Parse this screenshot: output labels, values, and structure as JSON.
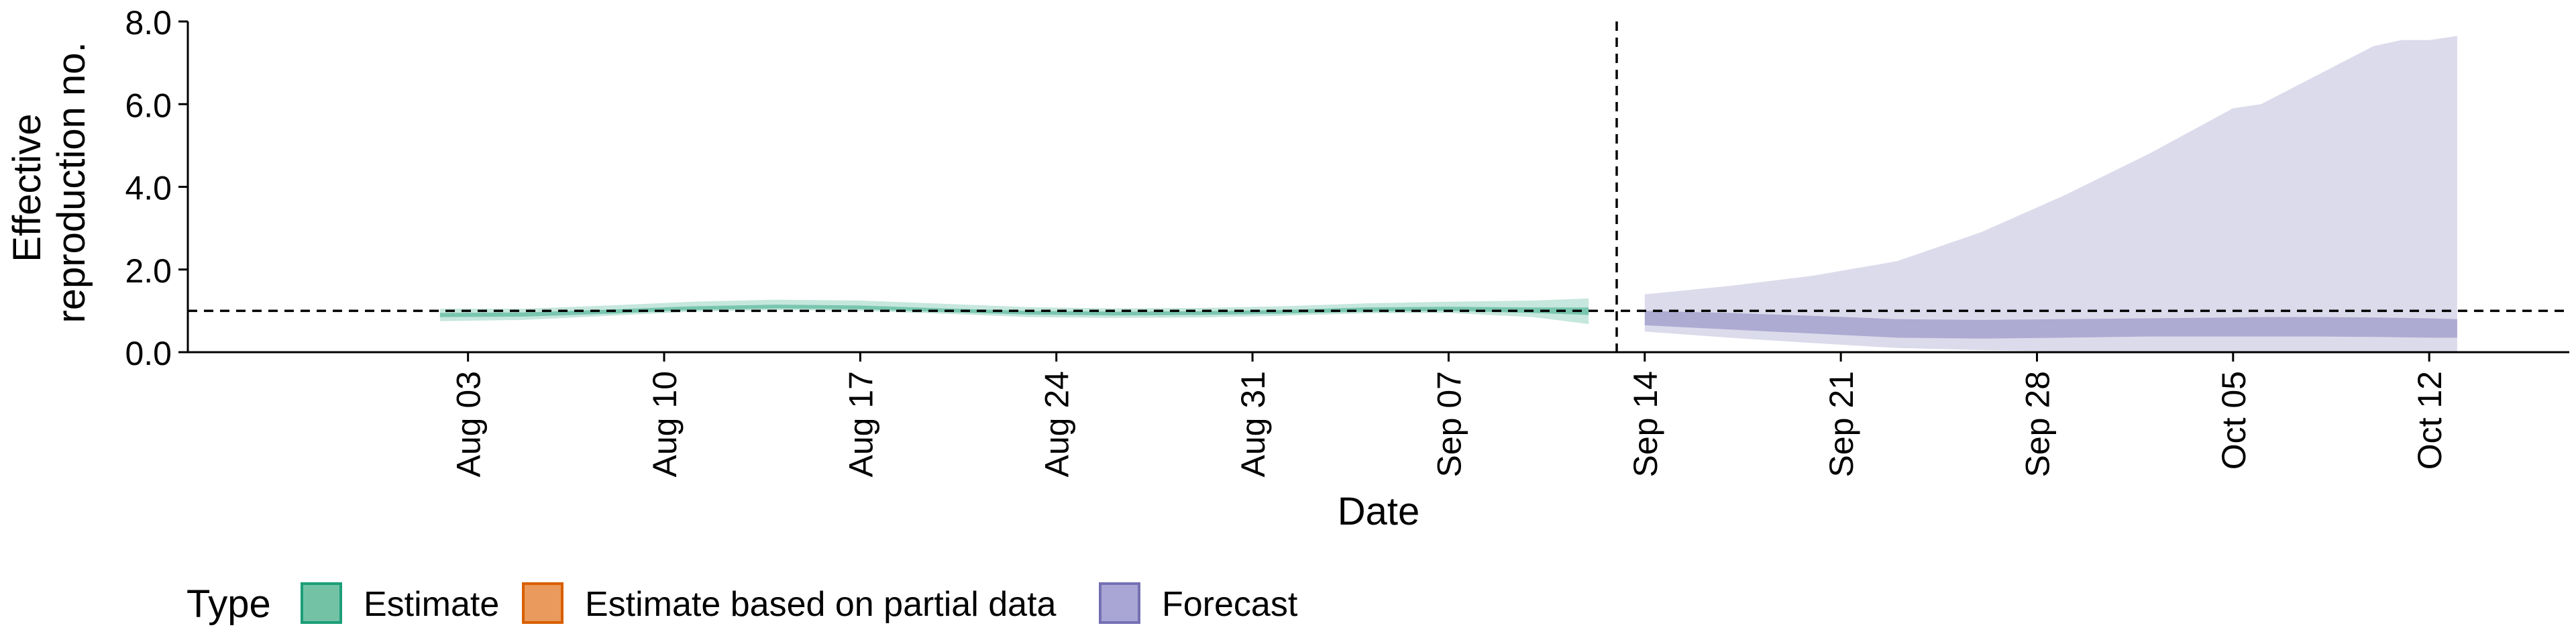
{
  "chart_data": {
    "type": "area",
    "title": "",
    "xlabel": "Date",
    "ylabel_lines": [
      "Effective",
      "reproduction no."
    ],
    "ylim": [
      0,
      8
    ],
    "yticks": [
      0,
      2,
      4,
      6,
      8
    ],
    "ytick_labels": [
      "0.0",
      "2.0",
      "4.0",
      "6.0",
      "8.0"
    ],
    "xlim": [
      "2020-07-24",
      "2020-10-17"
    ],
    "xticks": [
      "2020-08-03",
      "2020-08-10",
      "2020-08-17",
      "2020-08-24",
      "2020-08-31",
      "2020-09-07",
      "2020-09-14",
      "2020-09-21",
      "2020-09-28",
      "2020-10-05",
      "2020-10-12"
    ],
    "xtick_labels": [
      "Aug 03",
      "Aug 10",
      "Aug 17",
      "Aug 24",
      "Aug 31",
      "Sep 07",
      "Sep 14",
      "Sep 21",
      "Sep 28",
      "Oct 05",
      "Oct 12"
    ],
    "reference_hline": 1.0,
    "reference_vline": "2020-09-13",
    "grid": false,
    "legend": {
      "title": "Type",
      "position": "bottom",
      "items": [
        {
          "label": "Estimate",
          "fill": "#73c2a6",
          "stroke": "#1b9e77"
        },
        {
          "label": "Estimate based on partial data",
          "fill": "#e99a5c",
          "stroke": "#d95f02"
        },
        {
          "label": "Forecast",
          "fill": "#a9a5d4",
          "stroke": "#7570b3"
        }
      ]
    },
    "series": [
      {
        "name": "Estimate",
        "color": "#1b9e77",
        "x": [
          "2020-08-02",
          "2020-08-05",
          "2020-08-08",
          "2020-08-11",
          "2020-08-14",
          "2020-08-17",
          "2020-08-20",
          "2020-08-23",
          "2020-08-26",
          "2020-08-29",
          "2020-09-01",
          "2020-09-04",
          "2020-09-07",
          "2020-09-10",
          "2020-09-12"
        ],
        "lower_outer": [
          0.75,
          0.78,
          0.88,
          0.98,
          1.02,
          1.0,
          0.93,
          0.85,
          0.83,
          0.84,
          0.88,
          0.94,
          0.95,
          0.85,
          0.68
        ],
        "lower_inner": [
          0.85,
          0.86,
          0.93,
          1.02,
          1.06,
          1.04,
          0.97,
          0.91,
          0.89,
          0.9,
          0.93,
          0.98,
          1.0,
          0.95,
          0.9
        ],
        "upper_inner": [
          0.95,
          0.96,
          1.03,
          1.11,
          1.15,
          1.13,
          1.06,
          1.0,
          0.98,
          0.99,
          1.02,
          1.08,
          1.1,
          1.08,
          1.08
        ],
        "upper_outer": [
          1.05,
          1.05,
          1.13,
          1.22,
          1.27,
          1.25,
          1.17,
          1.09,
          1.06,
          1.07,
          1.11,
          1.18,
          1.22,
          1.25,
          1.3
        ]
      },
      {
        "name": "Forecast",
        "color": "#7570b3",
        "x": [
          "2020-09-14",
          "2020-09-17",
          "2020-09-20",
          "2020-09-23",
          "2020-09-26",
          "2020-09-29",
          "2020-10-02",
          "2020-10-05",
          "2020-10-06",
          "2020-10-08",
          "2020-10-10",
          "2020-10-11",
          "2020-10-12",
          "2020-10-13"
        ],
        "lower_outer": [
          0.5,
          0.35,
          0.22,
          0.1,
          0.05,
          0.02,
          0.01,
          0.0,
          0.0,
          0.0,
          0.0,
          0.0,
          0.0,
          0.0
        ],
        "lower_inner": [
          0.65,
          0.55,
          0.45,
          0.35,
          0.33,
          0.35,
          0.38,
          0.38,
          0.38,
          0.38,
          0.37,
          0.36,
          0.35,
          0.35
        ],
        "upper_inner": [
          1.0,
          0.95,
          0.88,
          0.8,
          0.78,
          0.8,
          0.82,
          0.84,
          0.85,
          0.85,
          0.84,
          0.83,
          0.82,
          0.8
        ],
        "upper_outer": [
          1.4,
          1.6,
          1.85,
          2.2,
          2.9,
          3.8,
          4.8,
          5.9,
          6.0,
          6.7,
          7.4,
          7.55,
          7.55,
          7.65
        ]
      }
    ]
  }
}
